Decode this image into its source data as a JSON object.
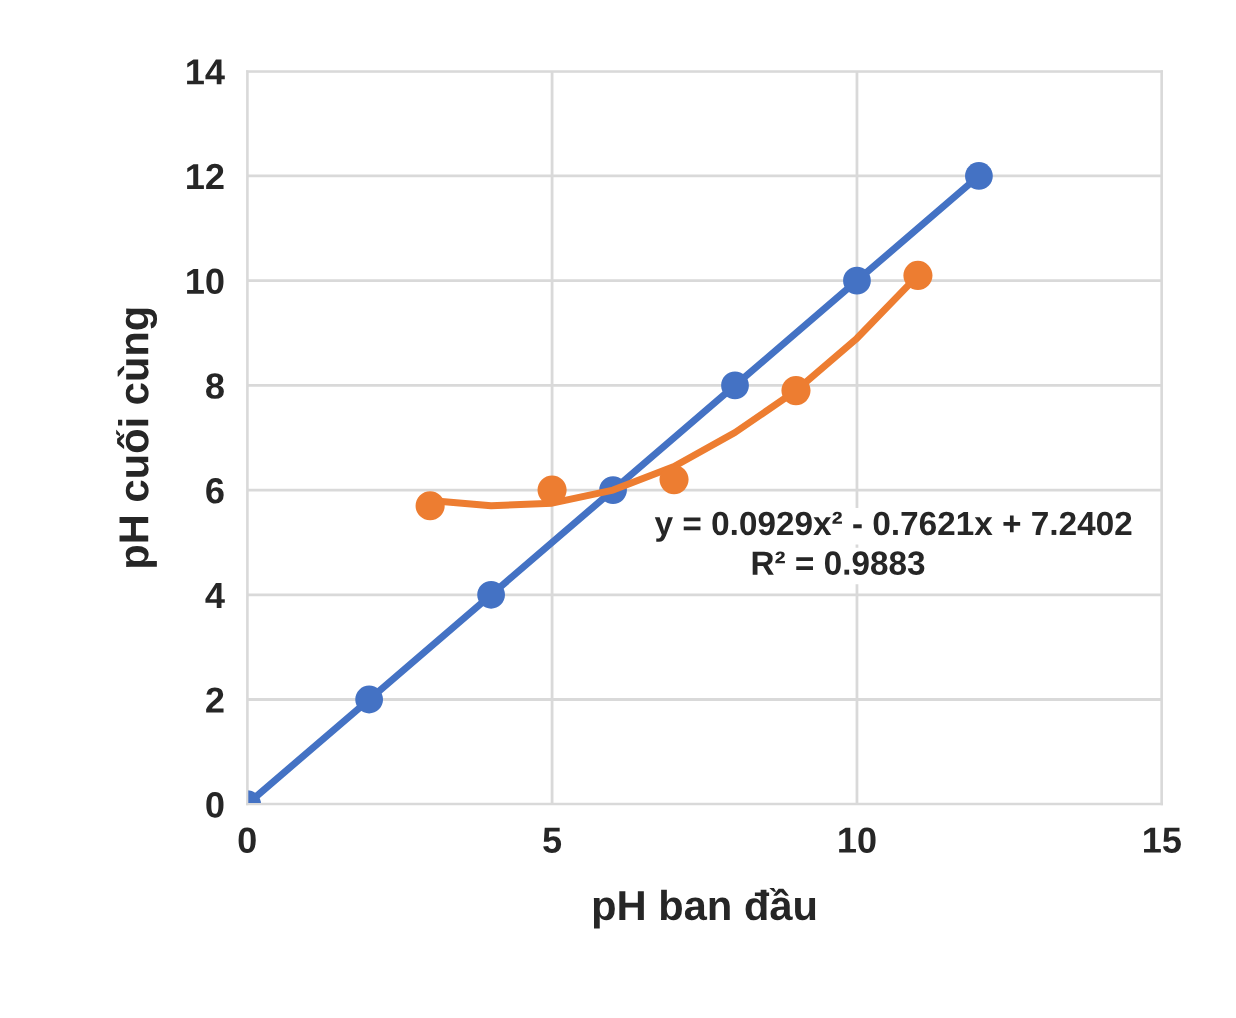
{
  "chart_data": {
    "type": "scatter",
    "xlabel": "pH ban đầu",
    "ylabel": "pH cuối cùng",
    "xlim": [
      0,
      15
    ],
    "xticks": [
      0,
      5,
      10,
      15
    ],
    "ylim": [
      0,
      14
    ],
    "yticks": [
      0,
      2,
      4,
      6,
      8,
      10,
      12,
      14
    ],
    "grid": true,
    "legend": false,
    "series": [
      {
        "type": "line",
        "marker": "circle",
        "color": "#4472c4",
        "x": [
          0,
          2,
          4,
          6,
          8,
          10,
          12
        ],
        "values": [
          0,
          2,
          4,
          6,
          8,
          10,
          12
        ]
      },
      {
        "type": "line",
        "marker": "none",
        "color": "#ed7d31",
        "x": [
          3,
          4,
          5,
          6,
          7,
          8,
          9,
          10,
          11
        ],
        "values": [
          5.8,
          5.7,
          5.75,
          6.0,
          6.45,
          7.1,
          7.9,
          8.9,
          10.1
        ]
      },
      {
        "marker": "circle",
        "color": "#ed7d31",
        "x": [
          3,
          5,
          7,
          9,
          11
        ],
        "values": [
          5.7,
          6.0,
          6.2,
          7.9,
          10.1
        ]
      }
    ],
    "annotations": [
      "y = 0.0929x² - 0.7621x + 7.2402",
      "R² = 0.9883"
    ]
  }
}
